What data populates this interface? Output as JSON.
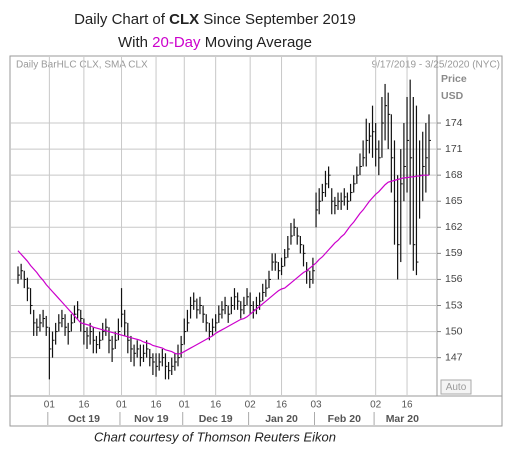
{
  "chart_data": {
    "type": "hlc_bar",
    "title": [
      "Daily Chart of",
      "CLX",
      "Since September 2019"
    ],
    "subtitle": [
      "With",
      "20-Day",
      "Moving Average"
    ],
    "header_left": "Daily BarHLC CLX, SMA CLX",
    "header_right": "9/17/2019 - 3/25/2020 (NYC)",
    "y_axis_label": [
      "Price",
      "USD"
    ],
    "scale_button": "Auto",
    "footer": "Chart courtesy of Thomson Reuters Eikon",
    "grid": true,
    "ylim": [
      142.7,
      181.6
    ],
    "yticks": [
      147,
      150,
      153,
      156,
      159,
      162,
      165,
      168,
      171,
      174
    ],
    "xticks": [
      {
        "value": "2019-10-01",
        "label": "01"
      },
      {
        "value": "2019-10-16",
        "label": "16"
      },
      {
        "value": "2019-11-01",
        "label": "01"
      },
      {
        "value": "2019-11-16",
        "label": "16"
      },
      {
        "value": "2019-12-01",
        "label": "01"
      },
      {
        "value": "2019-12-16",
        "label": "16"
      },
      {
        "value": "2020-01-02",
        "label": "02"
      },
      {
        "value": "2020-01-16",
        "label": "16"
      },
      {
        "value": "2020-02-03",
        "label": "03"
      },
      {
        "value": "2020-03-02",
        "label": "02"
      },
      {
        "value": "2020-03-16",
        "label": "16"
      }
    ],
    "month_labels": [
      {
        "value": "2019-10",
        "label": "Oct 19"
      },
      {
        "value": "2019-11",
        "label": "Nov 19"
      },
      {
        "value": "2019-12",
        "label": "Dec 19"
      },
      {
        "value": "2020-01",
        "label": "Jan 20"
      },
      {
        "value": "2020-02",
        "label": "Feb 20"
      },
      {
        "value": "2020-03",
        "label": "Mar 20"
      }
    ],
    "x": [
      "2019-09-17",
      "2019-09-18",
      "2019-09-19",
      "2019-09-20",
      "2019-09-23",
      "2019-09-24",
      "2019-09-25",
      "2019-09-26",
      "2019-09-27",
      "2019-09-30",
      "2019-10-01",
      "2019-10-02",
      "2019-10-03",
      "2019-10-04",
      "2019-10-07",
      "2019-10-08",
      "2019-10-09",
      "2019-10-10",
      "2019-10-11",
      "2019-10-14",
      "2019-10-15",
      "2019-10-16",
      "2019-10-17",
      "2019-10-18",
      "2019-10-21",
      "2019-10-22",
      "2019-10-23",
      "2019-10-24",
      "2019-10-25",
      "2019-10-28",
      "2019-10-29",
      "2019-10-30",
      "2019-10-31",
      "2019-11-01",
      "2019-11-04",
      "2019-11-05",
      "2019-11-06",
      "2019-11-07",
      "2019-11-08",
      "2019-11-11",
      "2019-11-12",
      "2019-11-13",
      "2019-11-14",
      "2019-11-15",
      "2019-11-18",
      "2019-11-19",
      "2019-11-20",
      "2019-11-21",
      "2019-11-22",
      "2019-11-25",
      "2019-11-26",
      "2019-11-27",
      "2019-11-29",
      "2019-12-02",
      "2019-12-03",
      "2019-12-04",
      "2019-12-05",
      "2019-12-06",
      "2019-12-09",
      "2019-12-10",
      "2019-12-11",
      "2019-12-12",
      "2019-12-13",
      "2019-12-16",
      "2019-12-17",
      "2019-12-18",
      "2019-12-19",
      "2019-12-20",
      "2019-12-23",
      "2019-12-24",
      "2019-12-26",
      "2019-12-27",
      "2019-12-30",
      "2019-12-31",
      "2020-01-02",
      "2020-01-03",
      "2020-01-06",
      "2020-01-07",
      "2020-01-08",
      "2020-01-09",
      "2020-01-10",
      "2020-01-13",
      "2020-01-14",
      "2020-01-15",
      "2020-01-16",
      "2020-01-17",
      "2020-01-21",
      "2020-01-22",
      "2020-01-23",
      "2020-01-24",
      "2020-01-27",
      "2020-01-28",
      "2020-01-29",
      "2020-01-30",
      "2020-01-31",
      "2020-02-03",
      "2020-02-04",
      "2020-02-05",
      "2020-02-06",
      "2020-02-07",
      "2020-02-10",
      "2020-02-11",
      "2020-02-12",
      "2020-02-13",
      "2020-02-14",
      "2020-02-18",
      "2020-02-19",
      "2020-02-20",
      "2020-02-21",
      "2020-02-24",
      "2020-02-25",
      "2020-02-26",
      "2020-02-27",
      "2020-02-28",
      "2020-03-02",
      "2020-03-03",
      "2020-03-04",
      "2020-03-05",
      "2020-03-06",
      "2020-03-09",
      "2020-03-10",
      "2020-03-11",
      "2020-03-12",
      "2020-03-13",
      "2020-03-16",
      "2020-03-17",
      "2020-03-18",
      "2020-03-19",
      "2020-03-20",
      "2020-03-23",
      "2020-03-24",
      "2020-03-25"
    ],
    "bars": {
      "color": "#111111",
      "high": [
        157.5,
        157.8,
        157,
        156.2,
        155,
        152.5,
        151.5,
        152,
        152.5,
        151.8,
        150.5,
        150,
        151,
        152,
        152.5,
        152,
        151,
        152,
        153,
        153.5,
        152.5,
        151.5,
        150.5,
        151,
        150.5,
        149.5,
        150,
        151,
        151.5,
        150.5,
        149.5,
        150,
        151.5,
        155,
        152.5,
        151,
        149.5,
        148.5,
        149,
        148.5,
        148.5,
        149,
        148,
        147.5,
        147.5,
        147.5,
        148,
        147.5,
        146.5,
        147,
        147.5,
        148.5,
        149.5,
        151.5,
        152.5,
        154,
        154.5,
        153.8,
        154,
        153,
        152,
        151,
        151.5,
        152,
        153,
        153.5,
        154,
        153,
        154,
        155,
        154.5,
        153.5,
        154,
        155,
        154.5,
        153.5,
        154,
        154.5,
        155.5,
        156,
        157,
        159,
        159,
        158,
        158.5,
        159.5,
        161,
        162.5,
        163,
        162,
        161,
        160,
        158,
        157,
        158.5,
        166,
        166.5,
        167,
        168.5,
        169,
        166.5,
        165.5,
        166,
        166,
        166.5,
        166,
        167,
        168,
        169,
        170.5,
        172,
        174.5,
        174,
        176,
        174,
        172,
        177,
        178.5,
        177.5,
        175,
        172,
        168,
        171,
        174,
        177,
        179,
        177,
        176,
        172,
        173,
        174,
        175
      ],
      "low": [
        155.5,
        156,
        155,
        153.5,
        152,
        149.5,
        149.5,
        150,
        150.5,
        149.5,
        144.5,
        147,
        148.5,
        150,
        150.5,
        149.5,
        148.5,
        150,
        151,
        151.5,
        150,
        148.5,
        148,
        148.5,
        147.5,
        147.5,
        148,
        149,
        149.5,
        147.5,
        146.5,
        148,
        149,
        150.5,
        149.5,
        147.5,
        146.5,
        146,
        147,
        146,
        146.5,
        147,
        146,
        145,
        144.8,
        145.5,
        146,
        144.5,
        144.5,
        145,
        145.5,
        146,
        147,
        148.5,
        150,
        151.5,
        152.5,
        151.5,
        152,
        151,
        150,
        149,
        149.5,
        150,
        151,
        151.5,
        152,
        151,
        152,
        152.5,
        152.5,
        151.5,
        152,
        153,
        152,
        151.5,
        152,
        152.5,
        153.5,
        154,
        155,
        157,
        157,
        156,
        156.5,
        157.5,
        158.5,
        160,
        161,
        160,
        159,
        157.5,
        155.5,
        155,
        155.5,
        162,
        163.5,
        165,
        165.5,
        166.5,
        163.5,
        163.5,
        164,
        164,
        164.5,
        164,
        165,
        166,
        167,
        168,
        169,
        169,
        170.5,
        170,
        169,
        168,
        170,
        172,
        171,
        166,
        160,
        156,
        158,
        165,
        166,
        160,
        157,
        156.5,
        163,
        165,
        166,
        168
      ],
      "close": [
        156.5,
        157,
        156,
        155,
        153,
        151,
        150.5,
        151,
        151.5,
        150.5,
        148,
        149,
        150,
        151,
        151.5,
        150.5,
        150,
        151,
        152,
        152.5,
        151.5,
        150,
        149.5,
        150,
        149,
        148.5,
        149,
        150,
        150.5,
        149,
        148,
        149,
        150,
        152,
        151,
        149,
        148,
        147.5,
        148,
        147,
        147.5,
        148,
        147,
        146.5,
        146,
        146.5,
        147,
        146,
        145.5,
        146,
        146.5,
        147,
        148.5,
        150,
        151,
        153,
        153.5,
        152.5,
        153,
        152,
        151,
        150,
        150.5,
        151,
        152,
        152.5,
        153,
        152,
        153,
        154,
        153.5,
        152.5,
        153,
        154,
        153,
        152.5,
        153,
        153.5,
        154.5,
        155,
        156,
        158,
        158,
        157,
        157.5,
        158.5,
        159.5,
        161,
        162,
        161,
        160,
        159,
        157,
        156,
        157,
        164,
        165,
        166,
        167,
        168,
        165,
        164.5,
        165,
        165,
        165.5,
        165,
        166,
        167,
        168,
        169,
        170,
        172,
        172.5,
        173,
        171,
        170,
        174,
        176,
        175,
        170,
        165,
        160,
        167,
        169,
        172,
        170,
        160,
        158,
        168,
        169,
        170,
        172
      ]
    },
    "moving_average": {
      "color": "#cc00cc",
      "values": [
        159.3,
        158.9,
        158.5,
        158.1,
        157.6,
        157.2,
        156.8,
        156.3,
        155.9,
        155.4,
        155.0,
        154.6,
        154.2,
        153.8,
        153.4,
        153.0,
        152.6,
        152.2,
        151.8,
        151.4,
        151.0,
        150.9,
        150.8,
        150.7,
        150.5,
        150.4,
        150.3,
        150.2,
        150.1,
        150.0,
        149.9,
        149.8,
        149.7,
        149.6,
        149.5,
        149.4,
        149.3,
        149.2,
        149.1,
        149.0,
        148.8,
        148.7,
        148.6,
        148.4,
        148.3,
        148.2,
        148.1,
        147.9,
        147.8,
        147.7,
        147.5,
        147.4,
        147.5,
        147.7,
        147.9,
        148.1,
        148.3,
        148.5,
        148.7,
        148.9,
        149.1,
        149.3,
        149.5,
        149.8,
        150.0,
        150.2,
        150.4,
        150.6,
        150.8,
        151.0,
        151.2,
        151.4,
        151.5,
        151.7,
        152.0,
        152.3,
        152.6,
        152.9,
        153.2,
        153.5,
        153.8,
        154.1,
        154.4,
        154.7,
        154.9,
        155.0,
        155.3,
        155.6,
        155.9,
        156.2,
        156.5,
        156.8,
        157.0,
        157.3,
        157.6,
        157.9,
        158.3,
        158.6,
        159.0,
        159.4,
        159.8,
        160.2,
        160.5,
        160.9,
        161.2,
        161.7,
        162.2,
        162.6,
        163.1,
        163.6,
        164.0,
        164.5,
        165.0,
        165.4,
        165.8,
        166.1,
        166.5,
        166.9,
        167.2,
        167.3,
        167.4,
        167.5,
        167.6,
        167.7,
        167.7,
        167.8,
        167.8,
        167.9,
        167.9,
        168.0,
        168.0,
        168.0
      ]
    }
  }
}
